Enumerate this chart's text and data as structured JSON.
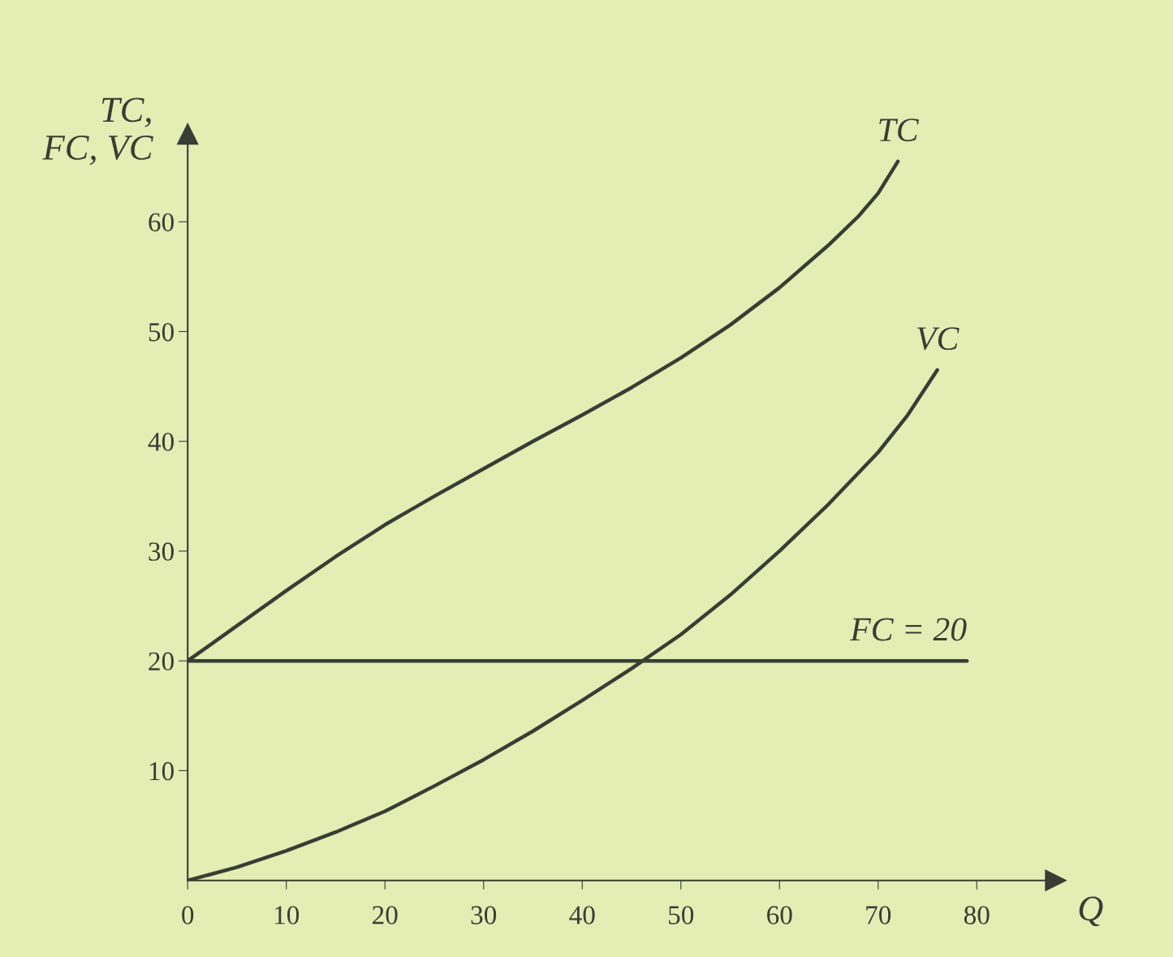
{
  "chart_data": {
    "type": "line",
    "xlabel": "Q",
    "ylabel": "TC,\nFC, VC",
    "series": [
      {
        "name": "TC",
        "color": "#3a3d33",
        "x": [
          0,
          5,
          10,
          15,
          20,
          25,
          30,
          35,
          40,
          45,
          50,
          55,
          60,
          65,
          68,
          70,
          72
        ],
        "values": [
          20,
          23.2,
          26.4,
          29.5,
          32.4,
          35,
          37.5,
          40,
          42.4,
          44.9,
          47.6,
          50.6,
          54,
          57.9,
          60.5,
          62.6,
          65.5
        ]
      },
      {
        "name": "VC",
        "color": "#3a3d33",
        "x": [
          0,
          5,
          10,
          15,
          20,
          25,
          30,
          35,
          40,
          45,
          50,
          55,
          60,
          65,
          70,
          73,
          76
        ],
        "values": [
          0,
          1.2,
          2.7,
          4.4,
          6.3,
          8.6,
          11,
          13.6,
          16.4,
          19.3,
          22.4,
          26,
          30,
          34.3,
          39,
          42.4,
          46.5
        ]
      },
      {
        "name": "FC = 20",
        "color": "#3a3d33",
        "x": [
          0,
          79
        ],
        "values": [
          20,
          20
        ]
      }
    ],
    "xlim": [
      0,
      88
    ],
    "ylim": [
      0,
      68
    ],
    "xticks": [
      0,
      10,
      20,
      30,
      40,
      50,
      60,
      70,
      80
    ],
    "yticks": [
      10,
      20,
      30,
      40,
      50,
      60
    ],
    "grid": false,
    "legend": false,
    "marker": "none",
    "line_style": "solid"
  }
}
